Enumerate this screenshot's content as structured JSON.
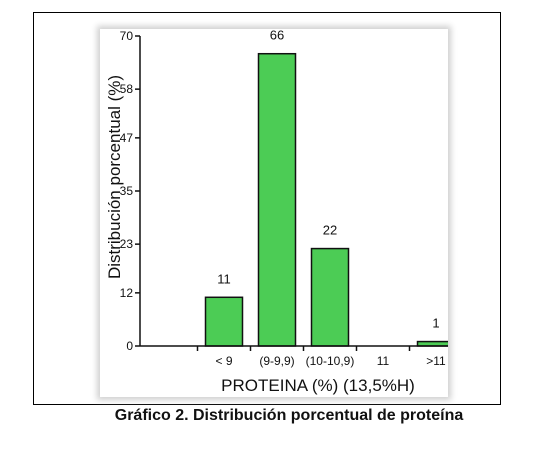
{
  "chart_data": {
    "type": "bar",
    "categories": [
      "< 9",
      "(9-9,9)",
      "(10-10,9)",
      "11",
      ">11"
    ],
    "values": [
      11,
      66,
      22,
      0,
      1
    ],
    "value_labels": [
      "11",
      "66",
      "22",
      "",
      "1"
    ],
    "xlabel": "PROTEINA (%) (13,5%H)",
    "ylabel": "Distribución porcentual  (%)",
    "yticks": [
      0,
      12,
      23,
      35,
      47,
      58,
      70
    ],
    "ylim": [
      0,
      70
    ],
    "grid": false,
    "bar_color": "#4ccc55",
    "bar_edge_color": "#111111"
  },
  "caption": "Gráfico 2. Distribución porcentual de proteína"
}
